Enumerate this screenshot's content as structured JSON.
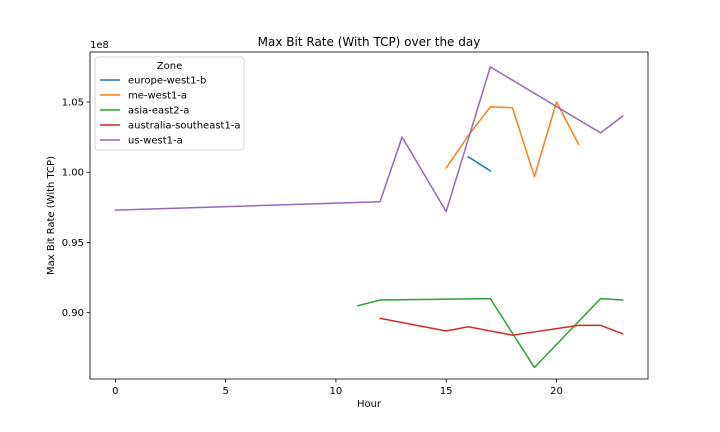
{
  "chart_data": {
    "type": "line",
    "title": "Max Bit Rate (With TCP) over the day",
    "xlabel": "Hour",
    "ylabel": "Max Bit Rate (With TCP)",
    "offset_label": "1e8",
    "xlim": [
      -1.15,
      24.15
    ],
    "ylim": [
      0.8528,
      1.0856
    ],
    "x_ticks": [
      0,
      5,
      10,
      15,
      20
    ],
    "x_tick_labels": [
      "0",
      "5",
      "10",
      "15",
      "20"
    ],
    "y_ticks": [
      0.9,
      0.95,
      1.0,
      1.05
    ],
    "y_tick_labels": [
      "0.90",
      "0.95",
      "1.00",
      "1.05"
    ],
    "grid": false,
    "legend": {
      "title": "Zone",
      "placement": "top-left"
    },
    "series": [
      {
        "name": "europe-west1-b",
        "color": "#1f77b4",
        "points": [
          [
            16,
            1.011
          ],
          [
            17,
            1.001
          ]
        ]
      },
      {
        "name": "me-west1-a",
        "color": "#ff7f0e",
        "points": [
          [
            15,
            1.003
          ],
          [
            16,
            1.026
          ],
          [
            17,
            1.0465
          ],
          [
            18,
            1.046
          ],
          [
            19,
            0.997
          ],
          [
            20,
            1.05
          ],
          [
            21,
            1.02
          ]
        ]
      },
      {
        "name": "asia-east2-a",
        "color": "#2ca02c",
        "points": [
          [
            11,
            0.905
          ],
          [
            12,
            0.909
          ],
          [
            17,
            0.91
          ],
          [
            19,
            0.861
          ],
          [
            22,
            0.91
          ],
          [
            23,
            0.909
          ]
        ]
      },
      {
        "name": "australia-southeast1-a",
        "color": "#d62728",
        "points": [
          [
            12,
            0.896
          ],
          [
            15,
            0.887
          ],
          [
            16,
            0.89
          ],
          [
            18,
            0.884
          ],
          [
            21,
            0.891
          ],
          [
            22,
            0.891
          ],
          [
            23,
            0.885
          ]
        ]
      },
      {
        "name": "us-west1-a",
        "color": "#9467bd",
        "points": [
          [
            0,
            0.973
          ],
          [
            12,
            0.979
          ],
          [
            13,
            1.025
          ],
          [
            15,
            0.972
          ],
          [
            17,
            1.075
          ],
          [
            22,
            1.028
          ],
          [
            23,
            1.04
          ]
        ]
      }
    ]
  }
}
